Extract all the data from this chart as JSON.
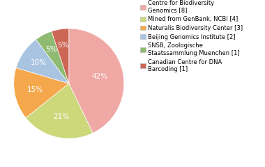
{
  "labels": [
    "Centre for Biodiversity\nGenomics [8]",
    "Mined from GenBank, NCBI [4]",
    "Naturalis Biodiversity Center [3]",
    "Beijing Genomics Institute [2]",
    "SNSB, Zoologische\nStaatssammlung Muenchen [1]",
    "Canadian Centre for DNA\nBarcoding [1]"
  ],
  "values": [
    42,
    21,
    15,
    10,
    5,
    5
  ],
  "colors": [
    "#f0a8a4",
    "#ccd87a",
    "#f5a84b",
    "#a8c4e0",
    "#8fba72",
    "#cc6655"
  ],
  "pct_labels": [
    "42%",
    "21%",
    "15%",
    "10%",
    "5%",
    "5%"
  ],
  "startangle": 90,
  "fontsize": 7.5
}
